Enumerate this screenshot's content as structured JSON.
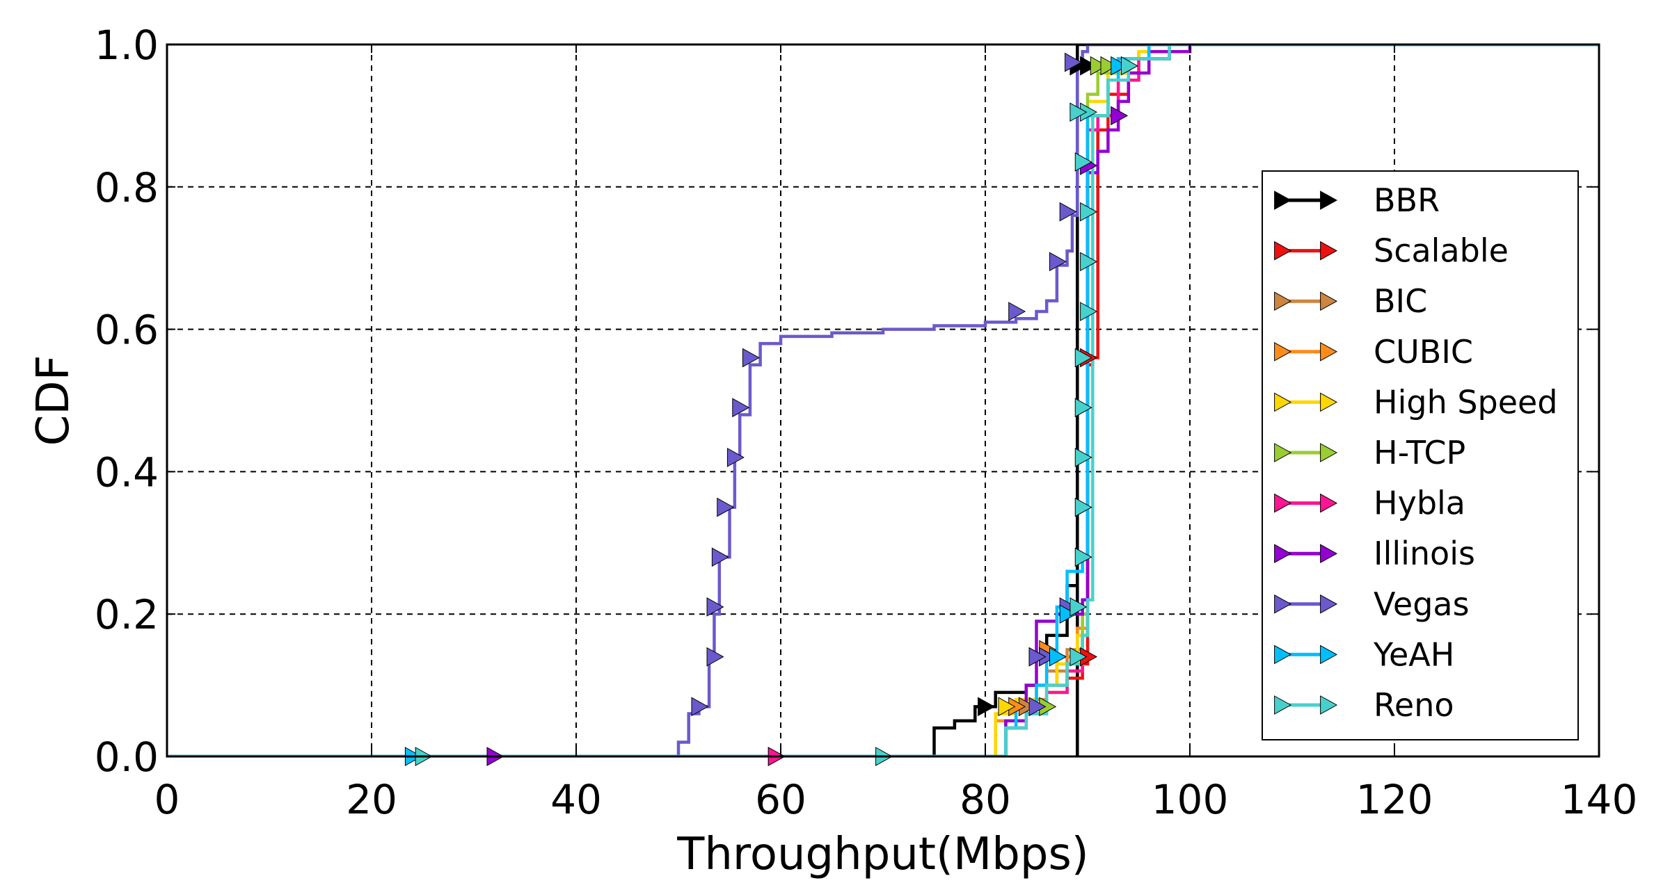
{
  "chart_data": {
    "type": "line",
    "step": true,
    "xlabel": "Throughput(Mbps)",
    "ylabel": "CDF",
    "xlim": [
      0,
      140
    ],
    "ylim": [
      0.0,
      1.0
    ],
    "xticks": [
      0,
      20,
      40,
      60,
      80,
      100,
      120,
      140
    ],
    "yticks": [
      0.0,
      0.2,
      0.4,
      0.6,
      0.8,
      1.0
    ],
    "xtick_labels": [
      "0",
      "20",
      "40",
      "60",
      "80",
      "100",
      "120",
      "140"
    ],
    "ytick_labels": [
      "0.0",
      "0.2",
      "0.4",
      "0.6",
      "0.8",
      "1.0"
    ],
    "grid": true,
    "legend_position": "center-right",
    "marker": "right-triangle",
    "series": [
      {
        "name": "BBR",
        "color": "#000000",
        "points": [
          [
            0,
            0
          ],
          [
            60,
            0
          ],
          [
            75,
            0.0
          ],
          [
            75,
            0.04
          ],
          [
            77,
            0.04
          ],
          [
            77,
            0.05
          ],
          [
            79,
            0.05
          ],
          [
            79,
            0.07
          ],
          [
            81,
            0.07
          ],
          [
            81,
            0.09
          ],
          [
            84,
            0.09
          ],
          [
            84,
            0.1
          ],
          [
            86,
            0.1
          ],
          [
            86,
            0.17
          ],
          [
            88,
            0.17
          ],
          [
            88,
            0.24
          ],
          [
            89,
            0.24
          ],
          [
            89,
            0.0
          ],
          [
            89,
            1.0
          ],
          [
            90,
            1.0
          ],
          [
            140,
            1.0
          ]
        ],
        "markers": [
          [
            80,
            0.07
          ],
          [
            89,
            0.97
          ],
          [
            90,
            0.97
          ]
        ]
      },
      {
        "name": "Scalable",
        "color": "#ee1111",
        "points": [
          [
            0,
            0
          ],
          [
            59,
            0
          ],
          [
            80,
            0
          ],
          [
            82,
            0.04
          ],
          [
            84,
            0.07
          ],
          [
            86,
            0.1
          ],
          [
            88,
            0.11
          ],
          [
            89.5,
            0.13
          ],
          [
            90,
            0.14
          ],
          [
            90,
            0.55
          ],
          [
            90.5,
            0.56
          ],
          [
            91,
            0.88
          ],
          [
            92,
            0.93
          ],
          [
            94,
            0.98
          ],
          [
            96,
            1.0
          ],
          [
            140,
            1.0
          ]
        ],
        "markers": [
          [
            59.5,
            0.0
          ],
          [
            90,
            0.14
          ],
          [
            90,
            0.56
          ]
        ]
      },
      {
        "name": "BIC",
        "color": "#cd853f",
        "points": [
          [
            0,
            0
          ],
          [
            79,
            0
          ],
          [
            82,
            0.05
          ],
          [
            84,
            0.08
          ],
          [
            86,
            0.12
          ],
          [
            88,
            0.15
          ],
          [
            89.5,
            0.2
          ],
          [
            90,
            0.9
          ],
          [
            92,
            0.95
          ],
          [
            94,
            0.98
          ],
          [
            98,
            1.0
          ],
          [
            140,
            1.0
          ]
        ],
        "markers": [
          [
            84,
            0.07
          ],
          [
            86,
            0.14
          ]
        ]
      },
      {
        "name": "CUBIC",
        "color": "#ff8c1a",
        "points": [
          [
            0,
            0
          ],
          [
            79,
            0
          ],
          [
            81,
            0.05
          ],
          [
            83,
            0.07
          ],
          [
            85,
            0.1
          ],
          [
            87,
            0.14
          ],
          [
            89,
            0.18
          ],
          [
            90,
            0.9
          ],
          [
            92,
            0.96
          ],
          [
            95,
            0.99
          ],
          [
            100,
            1.0
          ],
          [
            140,
            1.0
          ]
        ],
        "markers": [
          [
            83,
            0.07
          ],
          [
            86,
            0.15
          ]
        ]
      },
      {
        "name": "High Speed",
        "color": "#ffd700",
        "points": [
          [
            0,
            0
          ],
          [
            79,
            0
          ],
          [
            81,
            0.06
          ],
          [
            83,
            0.08
          ],
          [
            85,
            0.1
          ],
          [
            87,
            0.13
          ],
          [
            89,
            0.17
          ],
          [
            90,
            0.92
          ],
          [
            92,
            0.96
          ],
          [
            95,
            0.99
          ],
          [
            100,
            1.0
          ],
          [
            140,
            1.0
          ]
        ],
        "markers": [
          [
            82,
            0.07
          ]
        ]
      },
      {
        "name": "H-TCP",
        "color": "#9acd32",
        "points": [
          [
            0,
            0
          ],
          [
            79,
            0
          ],
          [
            82,
            0.05
          ],
          [
            84,
            0.07
          ],
          [
            86,
            0.09
          ],
          [
            88,
            0.12
          ],
          [
            89.5,
            0.2
          ],
          [
            90,
            0.93
          ],
          [
            91,
            0.96
          ],
          [
            93,
            0.98
          ],
          [
            98,
            1.0
          ],
          [
            140,
            1.0
          ]
        ],
        "markers": [
          [
            86,
            0.07
          ],
          [
            91,
            0.97
          ],
          [
            92,
            0.97
          ]
        ]
      },
      {
        "name": "Hybla",
        "color": "#ff1493",
        "points": [
          [
            0,
            0
          ],
          [
            59,
            0
          ],
          [
            80,
            0
          ],
          [
            82,
            0.04
          ],
          [
            84,
            0.06
          ],
          [
            86,
            0.09
          ],
          [
            88,
            0.12
          ],
          [
            89.5,
            0.17
          ],
          [
            90,
            0.88
          ],
          [
            91,
            0.9
          ],
          [
            93,
            0.95
          ],
          [
            95,
            0.98
          ],
          [
            98,
            1.0
          ],
          [
            140,
            1.0
          ]
        ],
        "markers": [
          [
            59.5,
            0.0
          ],
          [
            86,
            0.14
          ]
        ]
      },
      {
        "name": "Illinois",
        "color": "#9400d3",
        "points": [
          [
            0,
            0
          ],
          [
            32,
            0
          ],
          [
            80,
            0
          ],
          [
            82,
            0.05
          ],
          [
            84,
            0.1
          ],
          [
            85,
            0.19
          ],
          [
            87,
            0.2
          ],
          [
            89.5,
            0.22
          ],
          [
            90,
            0.82
          ],
          [
            91,
            0.85
          ],
          [
            92,
            0.88
          ],
          [
            93,
            0.92
          ],
          [
            94,
            0.96
          ],
          [
            96,
            0.99
          ],
          [
            100,
            1.0
          ],
          [
            140,
            1.0
          ]
        ],
        "markers": [
          [
            32,
            0.0
          ],
          [
            85,
            0.14
          ],
          [
            90,
            0.83
          ],
          [
            93,
            0.9
          ]
        ]
      },
      {
        "name": "Vegas",
        "color": "#6a5acd",
        "points": [
          [
            0,
            0
          ],
          [
            48,
            0
          ],
          [
            50,
            0.02
          ],
          [
            51,
            0.06
          ],
          [
            52,
            0.07
          ],
          [
            53,
            0.14
          ],
          [
            53.5,
            0.2
          ],
          [
            54,
            0.28
          ],
          [
            55,
            0.35
          ],
          [
            55.5,
            0.42
          ],
          [
            56,
            0.48
          ],
          [
            57,
            0.55
          ],
          [
            58,
            0.58
          ],
          [
            60,
            0.59
          ],
          [
            65,
            0.595
          ],
          [
            70,
            0.6
          ],
          [
            75,
            0.605
          ],
          [
            80,
            0.61
          ],
          [
            83,
            0.615
          ],
          [
            85,
            0.625
          ],
          [
            86,
            0.64
          ],
          [
            87,
            0.69
          ],
          [
            88,
            0.71
          ],
          [
            88.5,
            0.76
          ],
          [
            89,
            0.97
          ],
          [
            89.5,
            0.99
          ],
          [
            90,
            1.0
          ],
          [
            140,
            1.0
          ]
        ],
        "markers": [
          [
            52,
            0.07
          ],
          [
            53.5,
            0.14
          ],
          [
            53.5,
            0.21
          ],
          [
            54,
            0.28
          ],
          [
            54.5,
            0.35
          ],
          [
            55.5,
            0.42
          ],
          [
            56,
            0.49
          ],
          [
            57,
            0.56
          ],
          [
            83,
            0.625
          ],
          [
            87,
            0.695
          ],
          [
            88,
            0.765
          ],
          [
            88.5,
            0.975
          ],
          [
            88,
            0.21
          ],
          [
            86,
            0.14
          ],
          [
            85,
            0.14
          ],
          [
            85,
            0.07
          ]
        ]
      },
      {
        "name": "YeAH",
        "color": "#00bfff",
        "points": [
          [
            0,
            0
          ],
          [
            24,
            0
          ],
          [
            82,
            0
          ],
          [
            82,
            0.04
          ],
          [
            83,
            0.07
          ],
          [
            85,
            0.1
          ],
          [
            86,
            0.14
          ],
          [
            87,
            0.21
          ],
          [
            88,
            0.26
          ],
          [
            89.5,
            0.28
          ],
          [
            90,
            0.9
          ],
          [
            92,
            0.95
          ],
          [
            93,
            0.98
          ],
          [
            96,
            1.0
          ],
          [
            140,
            1.0
          ]
        ],
        "markers": [
          [
            24,
            0.0
          ],
          [
            87,
            0.14
          ],
          [
            88,
            0.2
          ],
          [
            93,
            0.97
          ]
        ]
      },
      {
        "name": "Reno",
        "color": "#48d1cc",
        "points": [
          [
            0,
            0
          ],
          [
            24,
            0
          ],
          [
            69,
            0
          ],
          [
            80,
            0
          ],
          [
            82,
            0.04
          ],
          [
            84,
            0.06
          ],
          [
            86,
            0.1
          ],
          [
            88,
            0.13
          ],
          [
            89.5,
            0.17
          ],
          [
            90,
            0.22
          ],
          [
            90.5,
            0.9
          ],
          [
            92,
            0.95
          ],
          [
            94,
            0.98
          ],
          [
            98,
            1.0
          ],
          [
            140,
            1.0
          ]
        ],
        "markers": [
          [
            25,
            0.0
          ],
          [
            70,
            0.0
          ],
          [
            89,
            0.14
          ],
          [
            89,
            0.21
          ],
          [
            89.5,
            0.28
          ],
          [
            89.5,
            0.35
          ],
          [
            89.5,
            0.42
          ],
          [
            89.5,
            0.49
          ],
          [
            89.5,
            0.56
          ],
          [
            90,
            0.625
          ],
          [
            90,
            0.695
          ],
          [
            90,
            0.765
          ],
          [
            89.5,
            0.835
          ],
          [
            90,
            0.905
          ],
          [
            94,
            0.97
          ],
          [
            89,
            0.905
          ]
        ]
      }
    ]
  }
}
